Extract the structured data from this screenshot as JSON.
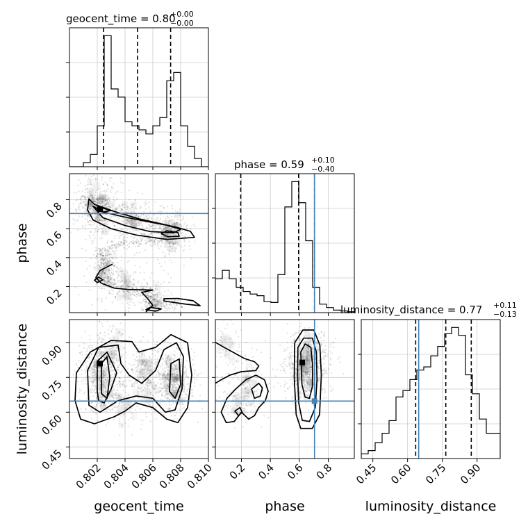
{
  "chart_data": {
    "type": "corner",
    "parameters": [
      "geocent_time",
      "phase",
      "luminosity_distance"
    ],
    "axis_labels": [
      "geocent_time",
      "phase",
      "luminosity_distance"
    ],
    "titles": [
      {
        "text": "geocent_time = 0.80",
        "sup": "+0.00",
        "sub": "−0.00"
      },
      {
        "text": "phase = 0.59",
        "sup": "+0.10",
        "sub": "−0.40"
      },
      {
        "text": "luminosity_distance = 0.77",
        "sup": "+0.11",
        "sub": "−0.13"
      }
    ],
    "ranges": [
      [
        0.8,
        0.81
      ],
      [
        0.02,
        0.98
      ],
      [
        0.4,
        1.0
      ]
    ],
    "ticks": [
      [
        0.802,
        0.804,
        0.806,
        0.808,
        0.81
      ],
      [
        0.2,
        0.4,
        0.6,
        0.8
      ],
      [
        0.45,
        0.6,
        0.75,
        0.9
      ]
    ],
    "tick_labels": [
      [
        "0.802",
        "0.804",
        "0.806",
        "0.808",
        "0.810"
      ],
      [
        "0.2",
        "0.4",
        "0.6",
        "0.8"
      ],
      [
        "0.45",
        "0.60",
        "0.75",
        "0.90"
      ]
    ],
    "quantiles": [
      [
        0.80245,
        0.8049,
        0.80728
      ],
      [
        0.195,
        0.595,
        0.705
      ],
      [
        0.635,
        0.765,
        0.875
      ]
    ],
    "truths": [
      null,
      0.705,
      0.648
    ],
    "truth_color": "#4682b4",
    "histograms": [
      {
        "edges": [
          0.8,
          0.8005,
          0.801,
          0.8015,
          0.802,
          0.8025,
          0.803,
          0.8035,
          0.804,
          0.8045,
          0.805,
          0.8055,
          0.806,
          0.8065,
          0.807,
          0.8075,
          0.808,
          0.8085,
          0.809,
          0.8095,
          0.81
        ],
        "counts": [
          0,
          0,
          1,
          3,
          10,
          32,
          19,
          17,
          11,
          10,
          9,
          8,
          10,
          12,
          21,
          23,
          10,
          5,
          2,
          0
        ]
      },
      {
        "edges": [
          0.02,
          0.068,
          0.116,
          0.164,
          0.212,
          0.26,
          0.308,
          0.356,
          0.404,
          0.452,
          0.5,
          0.548,
          0.596,
          0.644,
          0.692,
          0.74,
          0.788,
          0.836,
          0.884,
          0.932,
          0.98
        ],
        "counts": [
          4,
          5,
          4,
          3,
          2.5,
          2.2,
          2,
          1.3,
          1.2,
          4.5,
          12.5,
          15.5,
          13,
          8.5,
          3,
          1,
          0.6,
          0.3,
          0.2,
          0.1
        ]
      },
      {
        "edges": [
          0.4,
          0.43,
          0.46,
          0.49,
          0.52,
          0.55,
          0.58,
          0.61,
          0.64,
          0.67,
          0.7,
          0.73,
          0.76,
          0.79,
          0.82,
          0.85,
          0.88,
          0.91,
          0.94,
          0.97,
          1.0
        ],
        "counts": [
          0.3,
          0.5,
          1,
          1.6,
          2.4,
          3.9,
          4.3,
          5,
          5.6,
          5.8,
          6.5,
          7.1,
          7.9,
          8.3,
          7.8,
          5.3,
          4.1,
          2.5,
          1.6,
          1.6
        ]
      }
    ],
    "contours": {
      "1_0": [
        [
          [
            0.8014,
            0.806
          ],
          [
            0.8018,
            0.768
          ],
          [
            0.8032,
            0.72
          ],
          [
            0.805,
            0.668
          ],
          [
            0.8065,
            0.636
          ],
          [
            0.8077,
            0.61
          ],
          [
            0.8087,
            0.582
          ],
          [
            0.809,
            0.54
          ],
          [
            0.807,
            0.526
          ],
          [
            0.8048,
            0.556
          ],
          [
            0.803,
            0.6
          ],
          [
            0.8017,
            0.66
          ],
          [
            0.8013,
            0.73
          ]
        ],
        [
          [
            0.8017,
            0.755
          ],
          [
            0.8024,
            0.716
          ],
          [
            0.8038,
            0.684
          ],
          [
            0.8055,
            0.651
          ],
          [
            0.807,
            0.624
          ],
          [
            0.808,
            0.596
          ],
          [
            0.8075,
            0.572
          ],
          [
            0.8058,
            0.58
          ],
          [
            0.804,
            0.622
          ],
          [
            0.8024,
            0.676
          ]
        ],
        [
          [
            0.802,
            0.735
          ],
          [
            0.8024,
            0.715
          ],
          [
            0.803,
            0.725
          ],
          [
            0.8024,
            0.742
          ]
        ],
        [
          [
            0.807,
            0.586
          ],
          [
            0.8078,
            0.573
          ],
          [
            0.8079,
            0.548
          ],
          [
            0.8071,
            0.544
          ],
          [
            0.8066,
            0.565
          ]
        ],
        [
          [
            0.8018,
            0.244
          ],
          [
            0.802,
            0.228
          ],
          [
            0.8024,
            0.246
          ],
          [
            0.8021,
            0.266
          ]
        ],
        [
          [
            0.8068,
            0.1
          ],
          [
            0.8084,
            0.078
          ],
          [
            0.8094,
            0.068
          ],
          [
            0.8089,
            0.102
          ],
          [
            0.8078,
            0.118
          ],
          [
            0.8068,
            0.116
          ]
        ],
        [
          [
            0.8055,
            0.04
          ],
          [
            0.8058,
            0.056
          ],
          [
            0.8066,
            0.046
          ],
          [
            0.8062,
            0.03
          ]
        ]
      ],
      "1_0_open": [
        [
          [
            0.8031,
            0.355
          ],
          [
            0.8022,
            0.311
          ],
          [
            0.8019,
            0.262
          ],
          [
            0.8023,
            0.223
          ],
          [
            0.8032,
            0.19
          ],
          [
            0.8042,
            0.18
          ],
          [
            0.806,
            0.176
          ],
          [
            0.8052,
            0.16
          ],
          [
            0.8056,
            0.12
          ],
          [
            0.806,
            0.07
          ],
          [
            0.8055,
            0.025
          ]
        ]
      ],
      "2_0": [
        [
          [
            0.8005,
            0.77
          ],
          [
            0.8015,
            0.86
          ],
          [
            0.803,
            0.91
          ],
          [
            0.8045,
            0.905
          ],
          [
            0.805,
            0.86
          ],
          [
            0.8062,
            0.88
          ],
          [
            0.8073,
            0.935
          ],
          [
            0.8085,
            0.9
          ],
          [
            0.8088,
            0.76
          ],
          [
            0.8085,
            0.62
          ],
          [
            0.8078,
            0.555
          ],
          [
            0.807,
            0.57
          ],
          [
            0.806,
            0.62
          ],
          [
            0.8048,
            0.64
          ],
          [
            0.804,
            0.605
          ],
          [
            0.8032,
            0.58
          ],
          [
            0.8018,
            0.55
          ],
          [
            0.8008,
            0.57
          ],
          [
            0.8004,
            0.65
          ]
        ],
        [
          [
            0.8013,
            0.78
          ],
          [
            0.8021,
            0.88
          ],
          [
            0.8035,
            0.89
          ],
          [
            0.8037,
            0.81
          ],
          [
            0.8043,
            0.76
          ],
          [
            0.8052,
            0.725
          ],
          [
            0.8062,
            0.78
          ],
          [
            0.8068,
            0.87
          ],
          [
            0.8077,
            0.9
          ],
          [
            0.8082,
            0.84
          ],
          [
            0.8081,
            0.7
          ],
          [
            0.8076,
            0.61
          ],
          [
            0.8069,
            0.6
          ],
          [
            0.806,
            0.66
          ],
          [
            0.8048,
            0.67
          ],
          [
            0.8035,
            0.65
          ],
          [
            0.8022,
            0.6
          ],
          [
            0.8014,
            0.63
          ]
        ],
        [
          [
            0.802,
            0.69
          ],
          [
            0.802,
            0.82
          ],
          [
            0.8027,
            0.86
          ],
          [
            0.8034,
            0.77
          ],
          [
            0.803,
            0.7
          ],
          [
            0.8025,
            0.64
          ],
          [
            0.8021,
            0.65
          ]
        ],
        [
          [
            0.8072,
            0.69
          ],
          [
            0.8073,
            0.81
          ],
          [
            0.8079,
            0.83
          ],
          [
            0.808,
            0.72
          ],
          [
            0.8076,
            0.66
          ]
        ],
        [
          [
            0.8023,
            0.68
          ],
          [
            0.8023,
            0.81
          ],
          [
            0.8027,
            0.84
          ],
          [
            0.8029,
            0.75
          ],
          [
            0.8027,
            0.66
          ]
        ]
      ],
      "2_1": [
        [
          [
            0.568,
            0.9
          ],
          [
            0.625,
            0.955
          ],
          [
            0.7,
            0.955
          ],
          [
            0.742,
            0.89
          ],
          [
            0.752,
            0.76
          ],
          [
            0.74,
            0.59
          ],
          [
            0.69,
            0.53
          ],
          [
            0.61,
            0.53
          ],
          [
            0.578,
            0.59
          ],
          [
            0.565,
            0.75
          ]
        ],
        [
          [
            0.59,
            0.88
          ],
          [
            0.63,
            0.92
          ],
          [
            0.69,
            0.92
          ],
          [
            0.718,
            0.86
          ],
          [
            0.722,
            0.74
          ],
          [
            0.71,
            0.62
          ],
          [
            0.67,
            0.56
          ],
          [
            0.62,
            0.565
          ],
          [
            0.596,
            0.64
          ],
          [
            0.588,
            0.76
          ]
        ],
        [
          [
            0.61,
            0.86
          ],
          [
            0.64,
            0.895
          ],
          [
            0.68,
            0.88
          ],
          [
            0.692,
            0.8
          ],
          [
            0.69,
            0.71
          ],
          [
            0.67,
            0.66
          ],
          [
            0.64,
            0.665
          ],
          [
            0.618,
            0.72
          ]
        ],
        [
          [
            0.095,
            0.555
          ],
          [
            0.06,
            0.6
          ],
          [
            0.1,
            0.66
          ],
          [
            0.16,
            0.7
          ],
          [
            0.23,
            0.74
          ],
          [
            0.3,
            0.76
          ],
          [
            0.36,
            0.74
          ],
          [
            0.385,
            0.69
          ],
          [
            0.365,
            0.65
          ],
          [
            0.32,
            0.62
          ],
          [
            0.29,
            0.585
          ],
          [
            0.25,
            0.57
          ],
          [
            0.2,
            0.6
          ],
          [
            0.15,
            0.56
          ]
        ],
        [
          [
            0.27,
            0.7
          ],
          [
            0.32,
            0.725
          ],
          [
            0.345,
            0.705
          ],
          [
            0.33,
            0.67
          ],
          [
            0.29,
            0.66
          ]
        ],
        [
          [
            0.155,
            0.605
          ],
          [
            0.19,
            0.62
          ],
          [
            0.205,
            0.6
          ],
          [
            0.18,
            0.585
          ]
        ]
      ],
      "2_1_open": [
        [
          [
            0.02,
            0.902
          ],
          [
            0.08,
            0.88
          ],
          [
            0.14,
            0.86
          ],
          [
            0.22,
            0.832
          ],
          [
            0.29,
            0.818
          ],
          [
            0.32,
            0.8
          ],
          [
            0.3,
            0.78
          ],
          [
            0.2,
            0.775
          ],
          [
            0.12,
            0.76
          ],
          [
            0.06,
            0.74
          ],
          [
            0.02,
            0.725
          ]
        ]
      ]
    },
    "density_peaks": {
      "1_0": [
        [
          0.8022,
          0.735,
          1.0
        ],
        [
          0.8073,
          0.565,
          0.9
        ],
        [
          0.8045,
          0.65,
          0.6
        ],
        [
          0.8025,
          0.3,
          0.35
        ],
        [
          0.804,
          0.19,
          0.35
        ],
        [
          0.8062,
          0.09,
          0.3
        ],
        [
          0.8015,
          0.79,
          0.45
        ]
      ],
      "2_0": [
        [
          0.8022,
          0.79,
          1.0
        ],
        [
          0.8025,
          0.7,
          0.8
        ],
        [
          0.8075,
          0.76,
          0.9
        ],
        [
          0.8075,
          0.7,
          0.7
        ],
        [
          0.8055,
          0.81,
          0.45
        ],
        [
          0.8055,
          0.7,
          0.4
        ],
        [
          0.804,
          0.63,
          0.3
        ],
        [
          0.803,
          0.88,
          0.4
        ]
      ],
      "2_1": [
        [
          0.64,
          0.81,
          1.0
        ],
        [
          0.65,
          0.74,
          0.8
        ],
        [
          0.66,
          0.87,
          0.6
        ],
        [
          0.25,
          0.72,
          0.35
        ],
        [
          0.2,
          0.65,
          0.3
        ],
        [
          0.1,
          0.88,
          0.25
        ]
      ]
    },
    "point_lines": {
      "1_0": [
        [
          0.801,
          0.82
        ],
        [
          0.803,
          0.74
        ],
        [
          0.8055,
          0.66
        ],
        [
          0.808,
          0.58
        ],
        [
          0.8065,
          0.52
        ],
        [
          0.804,
          0.51
        ],
        [
          0.8022,
          0.44
        ],
        [
          0.8028,
          0.36
        ],
        [
          0.8022,
          0.29
        ],
        [
          0.803,
          0.21
        ],
        [
          0.805,
          0.18
        ],
        [
          0.806,
          0.14
        ],
        [
          0.8058,
          0.06
        ],
        [
          0.808,
          0.075
        ]
      ]
    },
    "markers": {
      "1_0": [
        [
          0.8022,
          0.735
        ]
      ],
      "2_0": [
        [
          0.8022,
          0.81
        ]
      ],
      "2_1": [
        [
          0.62,
          0.815
        ]
      ]
    },
    "truth_markers": {
      "2_1": [
        0.705,
        0.648
      ]
    }
  }
}
